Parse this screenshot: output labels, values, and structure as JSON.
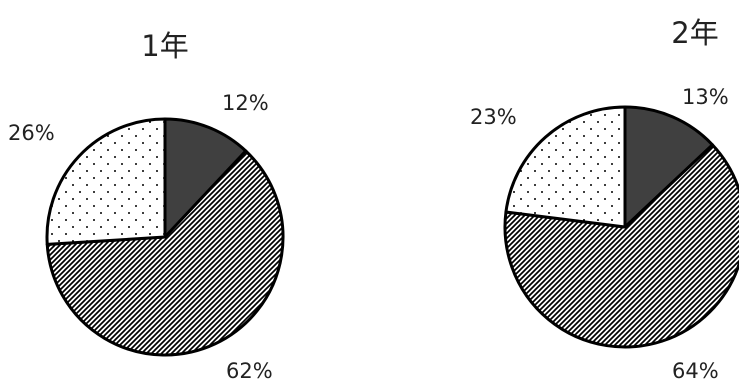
{
  "chart_data": [
    {
      "type": "pie",
      "title": "1年",
      "slices": [
        {
          "label": "12%",
          "value": 12,
          "pattern": "solid-dark"
        },
        {
          "label": "62%",
          "value": 62,
          "pattern": "diagonal-hatch"
        },
        {
          "label": "26%",
          "value": 26,
          "pattern": "dots"
        }
      ],
      "start": "12 o'clock",
      "direction": "clockwise"
    },
    {
      "type": "pie",
      "title": "2年",
      "slices": [
        {
          "label": "13%",
          "value": 13,
          "pattern": "solid-dark"
        },
        {
          "label": "64%",
          "value": 64,
          "pattern": "diagonal-hatch"
        },
        {
          "label": "23%",
          "value": 23,
          "pattern": "dots"
        }
      ],
      "start": "12 o'clock",
      "direction": "clockwise"
    }
  ],
  "colors": {
    "dark_slice": "#404040",
    "outline": "#000000",
    "pattern_ink": "#000000",
    "background": "#ffffff"
  }
}
